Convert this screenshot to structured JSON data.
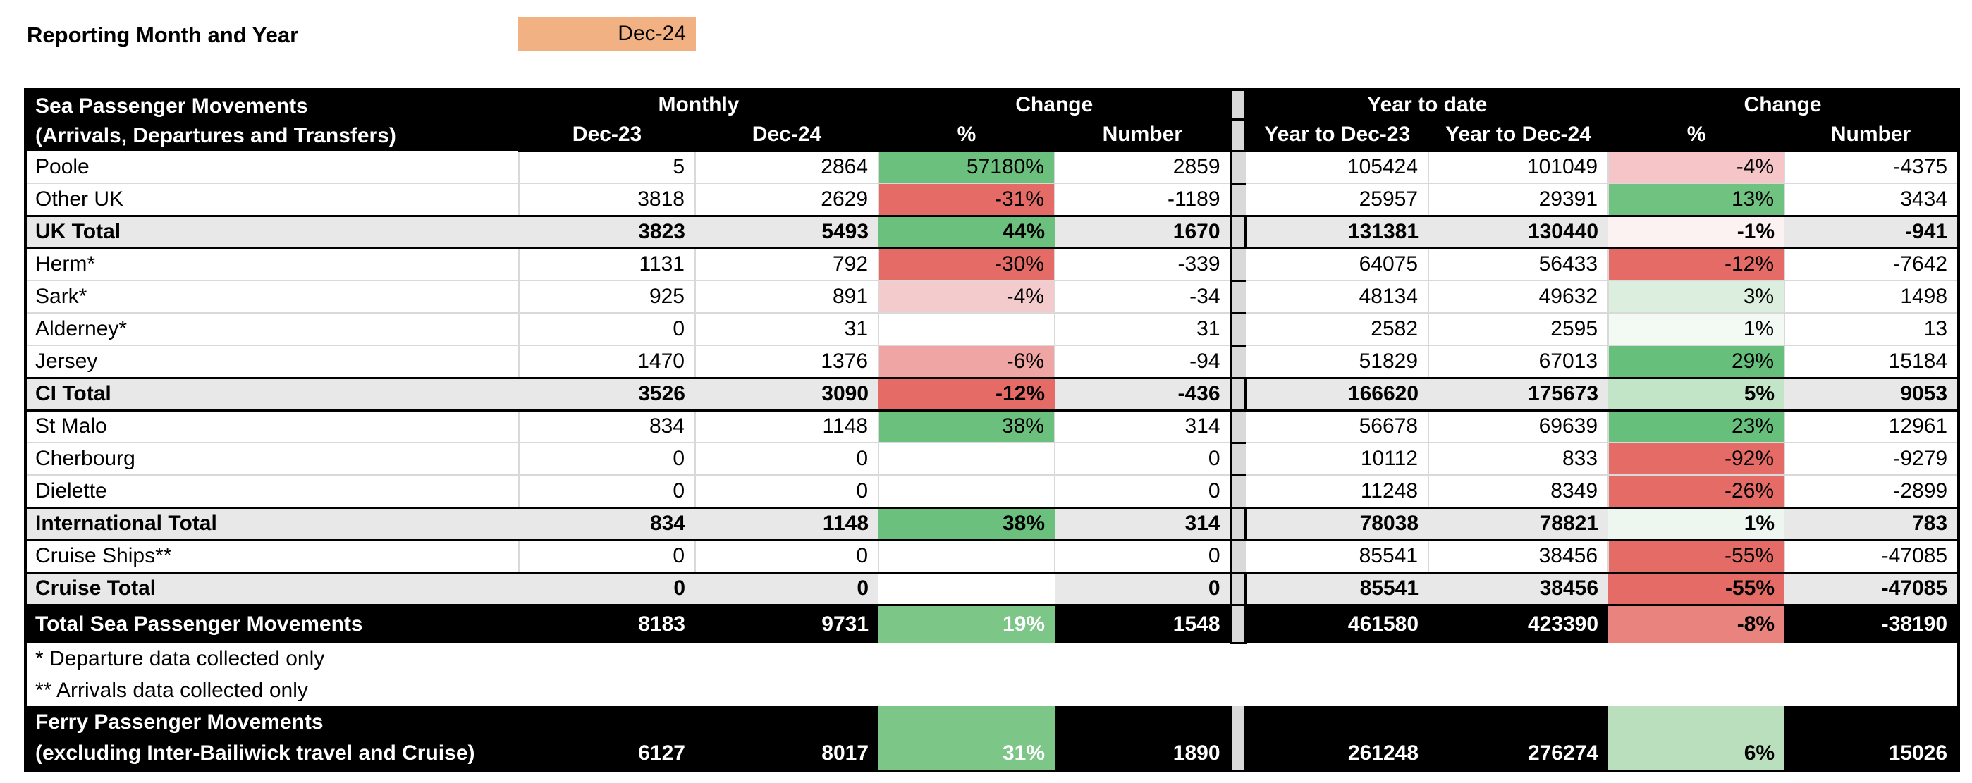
{
  "page": {
    "report_label": "Reporting Month and Year",
    "report_value": "Dec-24"
  },
  "colors": {
    "reporting_cell_orange": "#F1B183",
    "header_black": "#000000",
    "total_row_gray": "#E8E8E8",
    "separator_gray": "#D9D9D9",
    "gridline_gray": "#D9D9D9",
    "strong_green": "#6CC07D",
    "medium_green": "#7CC687",
    "light_green": "#C3E5C7",
    "strong_red": "#E56B66",
    "medium_red": "#E9837E"
  },
  "table": {
    "title_line1": "Sea Passenger Movements",
    "title_line2": "(Arrivals, Departures and Transfers)",
    "group_monthly": "Monthly",
    "group_change": "Change",
    "group_ytd": "Year to date",
    "col_headers": [
      "Dec-23",
      "Dec-24",
      "%",
      "Number",
      "Year to Dec-23",
      "Year to Dec-24",
      "%",
      "Number"
    ],
    "rows": [
      {
        "label": "Poole",
        "style": "data",
        "m23": "5",
        "m24": "2864",
        "pct_m": "57180%",
        "pct_m_bg": "#6CC07D",
        "pct_m_fg": "#000000",
        "num_m": "2859",
        "y23": "105424",
        "y24": "101049",
        "pct_y": "-4%",
        "pct_y_bg": "#F5C5C7",
        "pct_y_fg": "#000000",
        "num_y": "-4375"
      },
      {
        "label": "Other UK",
        "style": "data",
        "m23": "3818",
        "m24": "2629",
        "pct_m": "-31%",
        "pct_m_bg": "#E56B66",
        "pct_m_fg": "#000000",
        "num_m": "-1189",
        "y23": "25957",
        "y24": "29391",
        "pct_y": "13%",
        "pct_y_bg": "#70C280",
        "pct_y_fg": "#000000",
        "num_y": "3434"
      },
      {
        "label": "UK Total",
        "style": "total",
        "m23": "3823",
        "m24": "5493",
        "pct_m": "44%",
        "pct_m_bg": "#6CC07D",
        "pct_m_fg": "#000000",
        "num_m": "1670",
        "y23": "131381",
        "y24": "130440",
        "pct_y": "-1%",
        "pct_y_bg": "#FCF2F2",
        "pct_y_fg": "#000000",
        "num_y": "-941"
      },
      {
        "label": "Herm*",
        "style": "data",
        "m23": "1131",
        "m24": "792",
        "pct_m": "-30%",
        "pct_m_bg": "#E56B66",
        "pct_m_fg": "#000000",
        "num_m": "-339",
        "y23": "64075",
        "y24": "56433",
        "pct_y": "-12%",
        "pct_y_bg": "#E56B66",
        "pct_y_fg": "#000000",
        "num_y": "-7642"
      },
      {
        "label": "Sark*",
        "style": "data",
        "m23": "925",
        "m24": "891",
        "pct_m": "-4%",
        "pct_m_bg": "#F3CBCD",
        "pct_m_fg": "#000000",
        "num_m": "-34",
        "y23": "48134",
        "y24": "49632",
        "pct_y": "3%",
        "pct_y_bg": "#DCEEDE",
        "pct_y_fg": "#000000",
        "num_y": "1498"
      },
      {
        "label": "Alderney*",
        "style": "data",
        "m23": "0",
        "m24": "31",
        "pct_m": "",
        "pct_m_bg": "#FFFFFF",
        "pct_m_fg": "#000000",
        "num_m": "31",
        "y23": "2582",
        "y24": "2595",
        "pct_y": "1%",
        "pct_y_bg": "#F3FAF4",
        "pct_y_fg": "#000000",
        "num_y": "13"
      },
      {
        "label": "Jersey",
        "style": "data",
        "m23": "1470",
        "m24": "1376",
        "pct_m": "-6%",
        "pct_m_bg": "#EFA5A3",
        "pct_m_fg": "#000000",
        "num_m": "-94",
        "y23": "51829",
        "y24": "67013",
        "pct_y": "29%",
        "pct_y_bg": "#66BF7B",
        "pct_y_fg": "#000000",
        "num_y": "15184"
      },
      {
        "label": "CI Total",
        "style": "total",
        "m23": "3526",
        "m24": "3090",
        "pct_m": "-12%",
        "pct_m_bg": "#E56B66",
        "pct_m_fg": "#000000",
        "num_m": "-436",
        "y23": "166620",
        "y24": "175673",
        "pct_y": "5%",
        "pct_y_bg": "#C3E5C7",
        "pct_y_fg": "#000000",
        "num_y": "9053"
      },
      {
        "label": "St Malo",
        "style": "data",
        "m23": "834",
        "m24": "1148",
        "pct_m": "38%",
        "pct_m_bg": "#6CC07D",
        "pct_m_fg": "#000000",
        "num_m": "314",
        "y23": "56678",
        "y24": "69639",
        "pct_y": "23%",
        "pct_y_bg": "#66BF7B",
        "pct_y_fg": "#000000",
        "num_y": "12961"
      },
      {
        "label": "Cherbourg",
        "style": "data",
        "m23": "0",
        "m24": "0",
        "pct_m": "",
        "pct_m_bg": "#FFFFFF",
        "pct_m_fg": "#000000",
        "num_m": "0",
        "y23": "10112",
        "y24": "833",
        "pct_y": "-92%",
        "pct_y_bg": "#E56B66",
        "pct_y_fg": "#000000",
        "num_y": "-9279"
      },
      {
        "label": "Dielette",
        "style": "data",
        "m23": "0",
        "m24": "0",
        "pct_m": "",
        "pct_m_bg": "#FFFFFF",
        "pct_m_fg": "#000000",
        "num_m": "0",
        "y23": "11248",
        "y24": "8349",
        "pct_y": "-26%",
        "pct_y_bg": "#E56B66",
        "pct_y_fg": "#000000",
        "num_y": "-2899"
      },
      {
        "label": "International Total",
        "style": "total",
        "m23": "834",
        "m24": "1148",
        "pct_m": "38%",
        "pct_m_bg": "#6CC07D",
        "pct_m_fg": "#000000",
        "num_m": "314",
        "y23": "78038",
        "y24": "78821",
        "pct_y": "1%",
        "pct_y_bg": "#EDF7EF",
        "pct_y_fg": "#000000",
        "num_y": "783"
      },
      {
        "label": "Cruise Ships**",
        "style": "data",
        "m23": "0",
        "m24": "0",
        "pct_m": "",
        "pct_m_bg": "#FFFFFF",
        "pct_m_fg": "#000000",
        "num_m": "0",
        "y23": "85541",
        "y24": "38456",
        "pct_y": "-55%",
        "pct_y_bg": "#E56B66",
        "pct_y_fg": "#000000",
        "num_y": "-47085"
      },
      {
        "label": "Cruise Total",
        "style": "total",
        "m23": "0",
        "m24": "0",
        "pct_m": "",
        "pct_m_bg": "#FFFFFF",
        "pct_m_fg": "#000000",
        "num_m": "0",
        "y23": "85541",
        "y24": "38456",
        "pct_y": "-55%",
        "pct_y_bg": "#E56B66",
        "pct_y_fg": "#000000",
        "num_y": "-47085"
      },
      {
        "label": "Total Sea Passenger Movements",
        "style": "grand",
        "m23": "8183",
        "m24": "9731",
        "pct_m": "19%",
        "pct_m_bg": "#7CC687",
        "pct_m_fg": "#FFFFFF",
        "num_m": "1548",
        "y23": "461580",
        "y24": "423390",
        "pct_y": "-8%",
        "pct_y_bg": "#E9837E",
        "pct_y_fg": "#000000",
        "num_y": "-38190"
      }
    ],
    "footnotes": [
      "* Departure data collected only",
      "** Arrivals data collected only"
    ],
    "ferry": {
      "label_line1": "Ferry Passenger Movements",
      "label_line2": "(excluding Inter-Bailiwick travel and Cruise)",
      "m23": "6127",
      "m24": "8017",
      "pct_m": "31%",
      "pct_m_bg": "#7CC687",
      "pct_m_fg": "#FFFFFF",
      "num_m": "1890",
      "y23": "261248",
      "y24": "276274",
      "pct_y": "6%",
      "pct_y_bg": "#B9DFBC",
      "pct_y_fg": "#000000",
      "num_y": "15026"
    }
  }
}
